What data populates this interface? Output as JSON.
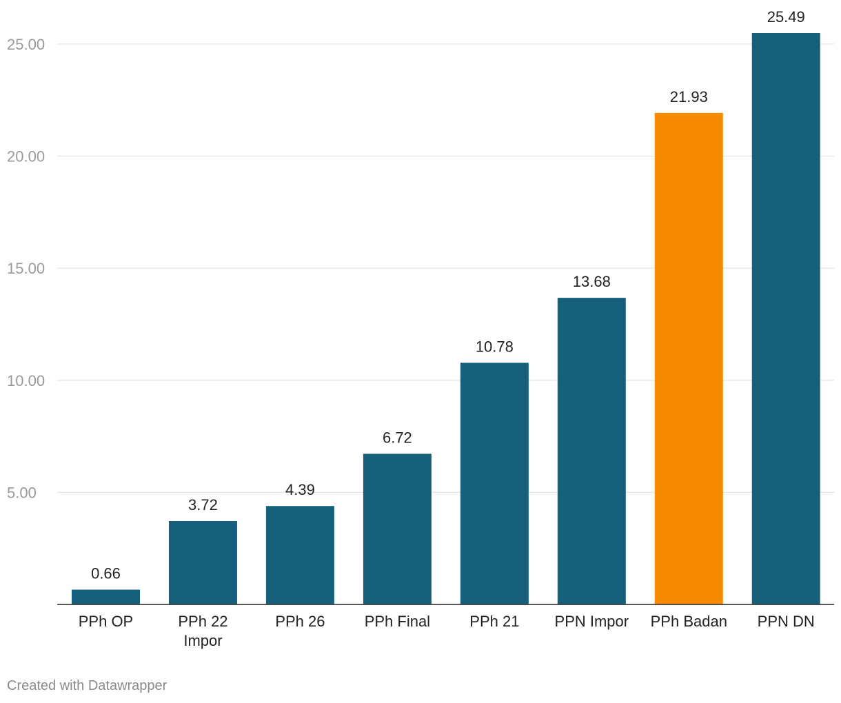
{
  "chart_data": {
    "type": "bar",
    "categories": [
      "PPh OP",
      "PPh 22 Impor",
      "PPh 26",
      "PPh Final",
      "PPh 21",
      "PPN Impor",
      "PPh Badan",
      "PPN DN"
    ],
    "category_lines": [
      [
        "PPh OP"
      ],
      [
        "PPh 22",
        "Impor"
      ],
      [
        "PPh 26"
      ],
      [
        "PPh Final"
      ],
      [
        "PPh 21"
      ],
      [
        "PPN Impor"
      ],
      [
        "PPh Badan"
      ],
      [
        "PPN DN"
      ]
    ],
    "values": [
      0.66,
      3.72,
      4.39,
      6.72,
      10.78,
      13.68,
      21.93,
      25.49
    ],
    "value_labels": [
      "0.66",
      "3.72",
      "4.39",
      "6.72",
      "10.78",
      "13.68",
      "21.93",
      "25.49"
    ],
    "highlight_category": "PPh Badan",
    "ylim": [
      0,
      25.49
    ],
    "yticks": [
      5,
      10,
      15,
      20,
      25
    ],
    "ytick_labels": [
      "5.00",
      "10.00",
      "15.00",
      "20.00",
      "25.00"
    ],
    "grid": true,
    "title": "",
    "xlabel": "",
    "ylabel": ""
  },
  "colors": {
    "bar": "#17607c",
    "highlight": "#f68b00",
    "grid": "#e3e3e3",
    "axis": "#222222",
    "tick_text": "#9a9a9a",
    "label_text": "#222222"
  },
  "footer": {
    "credit": "Created with Datawrapper"
  }
}
